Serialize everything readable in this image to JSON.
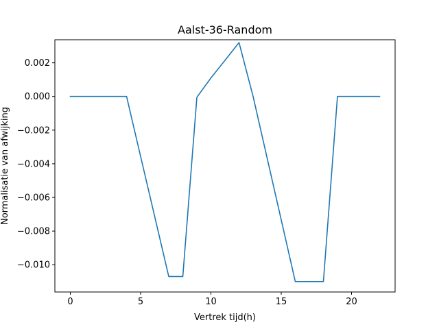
{
  "chart_data": {
    "type": "line",
    "title": "Aalst-36-Random",
    "xlabel": "Vertrek tijd(h)",
    "ylabel": "Normalisatie van afwijking",
    "xlim": [
      -1.1,
      23.1
    ],
    "ylim": [
      -0.01162,
      0.00337
    ],
    "xticks": [
      0,
      5,
      10,
      15,
      20
    ],
    "yticks": [
      0.002,
      0.0,
      -0.002,
      -0.004,
      -0.006,
      -0.008,
      -0.01
    ],
    "ytick_labels": [
      "0.002",
      "0.000",
      "−0.002",
      "−0.004",
      "−0.006",
      "−0.008",
      "−0.010"
    ],
    "grid": false,
    "series": [
      {
        "color": "#1f77b4",
        "x": [
          0,
          1,
          2,
          3,
          4,
          5,
          6,
          7,
          8,
          9,
          10,
          11,
          12,
          13,
          14,
          15,
          16,
          17,
          18,
          19,
          20,
          21,
          22
        ],
        "y": [
          0,
          0,
          0,
          0,
          0,
          -0.00357,
          -0.00713,
          -0.0107,
          -0.0107,
          -5e-05,
          0.0011,
          0.00215,
          0.0032,
          0.0,
          -0.00367,
          -0.00733,
          -0.011,
          -0.011,
          -0.011,
          0,
          0,
          0,
          0
        ]
      }
    ]
  }
}
